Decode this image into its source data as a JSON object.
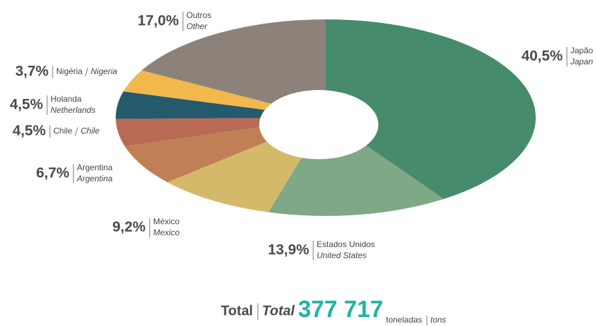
{
  "chart_data": {
    "type": "donut",
    "categories": [
      "Japão",
      "Estados Unidos",
      "México",
      "Argentina",
      "Chile",
      "Holanda",
      "Nigéria",
      "Outros"
    ],
    "categories_en": [
      "Japan",
      "United States",
      "Mexico",
      "Argentina",
      "Chile",
      "Netherlands",
      "Nigeria",
      "Other"
    ],
    "values": [
      40.5,
      13.9,
      9.2,
      6.7,
      4.5,
      4.5,
      3.7,
      17.0
    ],
    "value_labels": [
      "40,5%",
      "13,9%",
      "9,2%",
      "6,7%",
      "4,5%",
      "4,5%",
      "3,7%",
      "17,0%"
    ],
    "colors": [
      "#468b6b",
      "#7fa886",
      "#d4b96a",
      "#c07f55",
      "#b86a55",
      "#245a6b",
      "#f2b84b",
      "#8c8279"
    ],
    "total": {
      "label": "Total",
      "label_en": "Total",
      "value": 377717,
      "value_label": "377 717",
      "unit": "toneladas",
      "unit_en": "tons"
    }
  }
}
